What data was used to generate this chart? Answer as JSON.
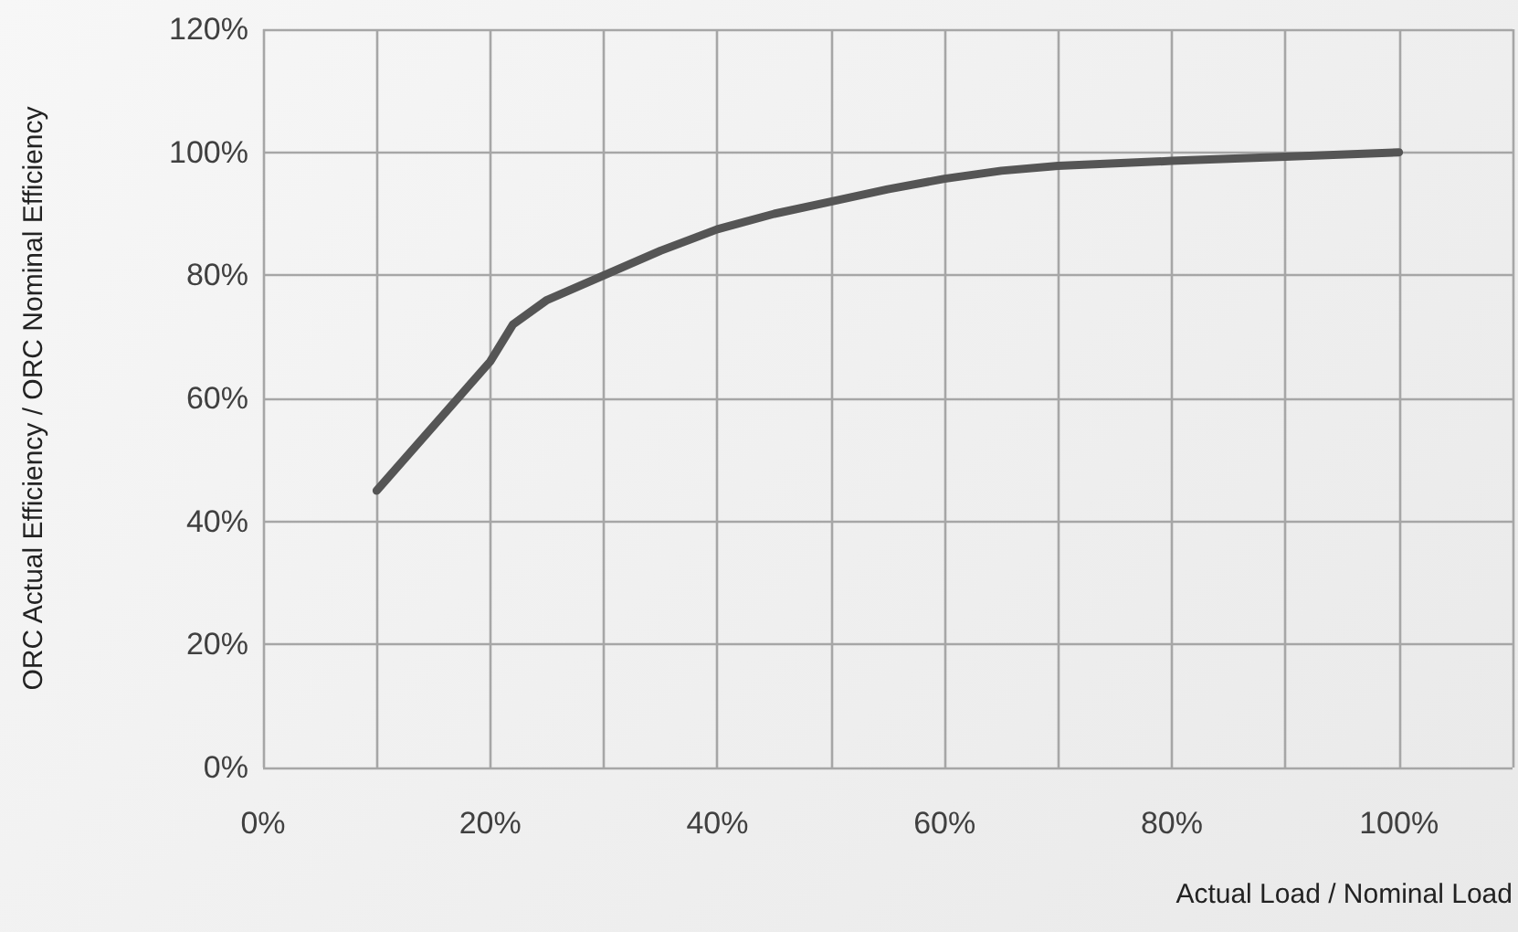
{
  "chart_data": {
    "type": "line",
    "xlabel": "Actual Load / Nominal Load",
    "ylabel": "ORC Actual Efficiency / ORC Nominal Efficiency",
    "x": [
      10,
      20,
      22,
      25,
      30,
      35,
      40,
      45,
      50,
      55,
      60,
      65,
      70,
      80,
      90,
      100
    ],
    "series": [
      {
        "color": "#555555",
        "values": [
          45,
          66,
          72,
          76,
          80,
          84,
          87.5,
          90,
          92,
          94,
          95.7,
          97,
          97.8,
          98.6,
          99.3,
          100
        ]
      }
    ],
    "xlim": [
      0,
      110
    ],
    "xticks": [
      {
        "value": 0,
        "label": "0%"
      },
      {
        "value": 10,
        "label": null
      },
      {
        "value": 20,
        "label": "20%"
      },
      {
        "value": 30,
        "label": null
      },
      {
        "value": 40,
        "label": "40%"
      },
      {
        "value": 50,
        "label": null
      },
      {
        "value": 60,
        "label": "60%"
      },
      {
        "value": 70,
        "label": null
      },
      {
        "value": 80,
        "label": "80%"
      },
      {
        "value": 90,
        "label": null
      },
      {
        "value": 100,
        "label": "100%"
      },
      {
        "value": 110,
        "label": null
      }
    ],
    "ylim": [
      0,
      120
    ],
    "yticks": [
      {
        "value": 0,
        "label": "0%"
      },
      {
        "value": 20,
        "label": "20%"
      },
      {
        "value": 40,
        "label": "40%"
      },
      {
        "value": 60,
        "label": "60%"
      },
      {
        "value": 80,
        "label": "80%"
      },
      {
        "value": 100,
        "label": "100%"
      },
      {
        "value": 120,
        "label": "120%"
      }
    ],
    "grid": true,
    "marker": "none",
    "line_style": "solid"
  }
}
